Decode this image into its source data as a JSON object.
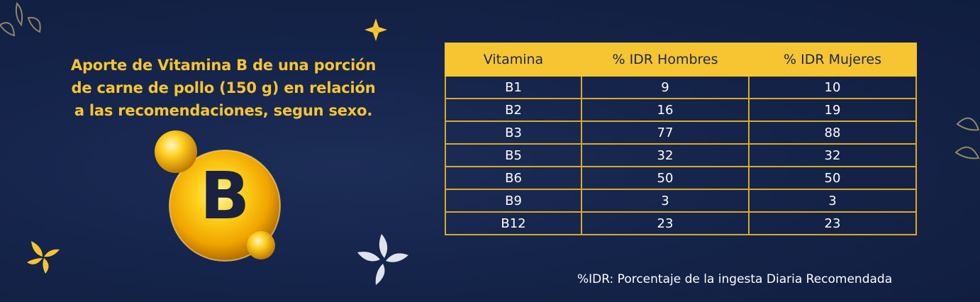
{
  "title_lines": [
    "Aporte de Vitamina B de una porción",
    "de carne de pollo (150 g) en relación",
    "a las recomendaciones, segun sexo."
  ],
  "vitamin_letter": "B",
  "table": {
    "headers": [
      "Vitamina",
      "% IDR Hombres",
      "% IDR Mujeres"
    ],
    "rows": [
      [
        "B1",
        "9",
        "10"
      ],
      [
        "B2",
        "16",
        "19"
      ],
      [
        "B3",
        "77",
        "88"
      ],
      [
        "B5",
        "32",
        "32"
      ],
      [
        "B6",
        "50",
        "50"
      ],
      [
        "B9",
        "3",
        "3"
      ],
      [
        "B12",
        "23",
        "23"
      ]
    ]
  },
  "footnote": "%IDR: Porcentaje de la ingesta Diaria Recomendada",
  "colors": {
    "background": "#15244a",
    "accent_yellow": "#f7c531",
    "text_white": "#ffffff",
    "header_text": "#1a2a52"
  }
}
